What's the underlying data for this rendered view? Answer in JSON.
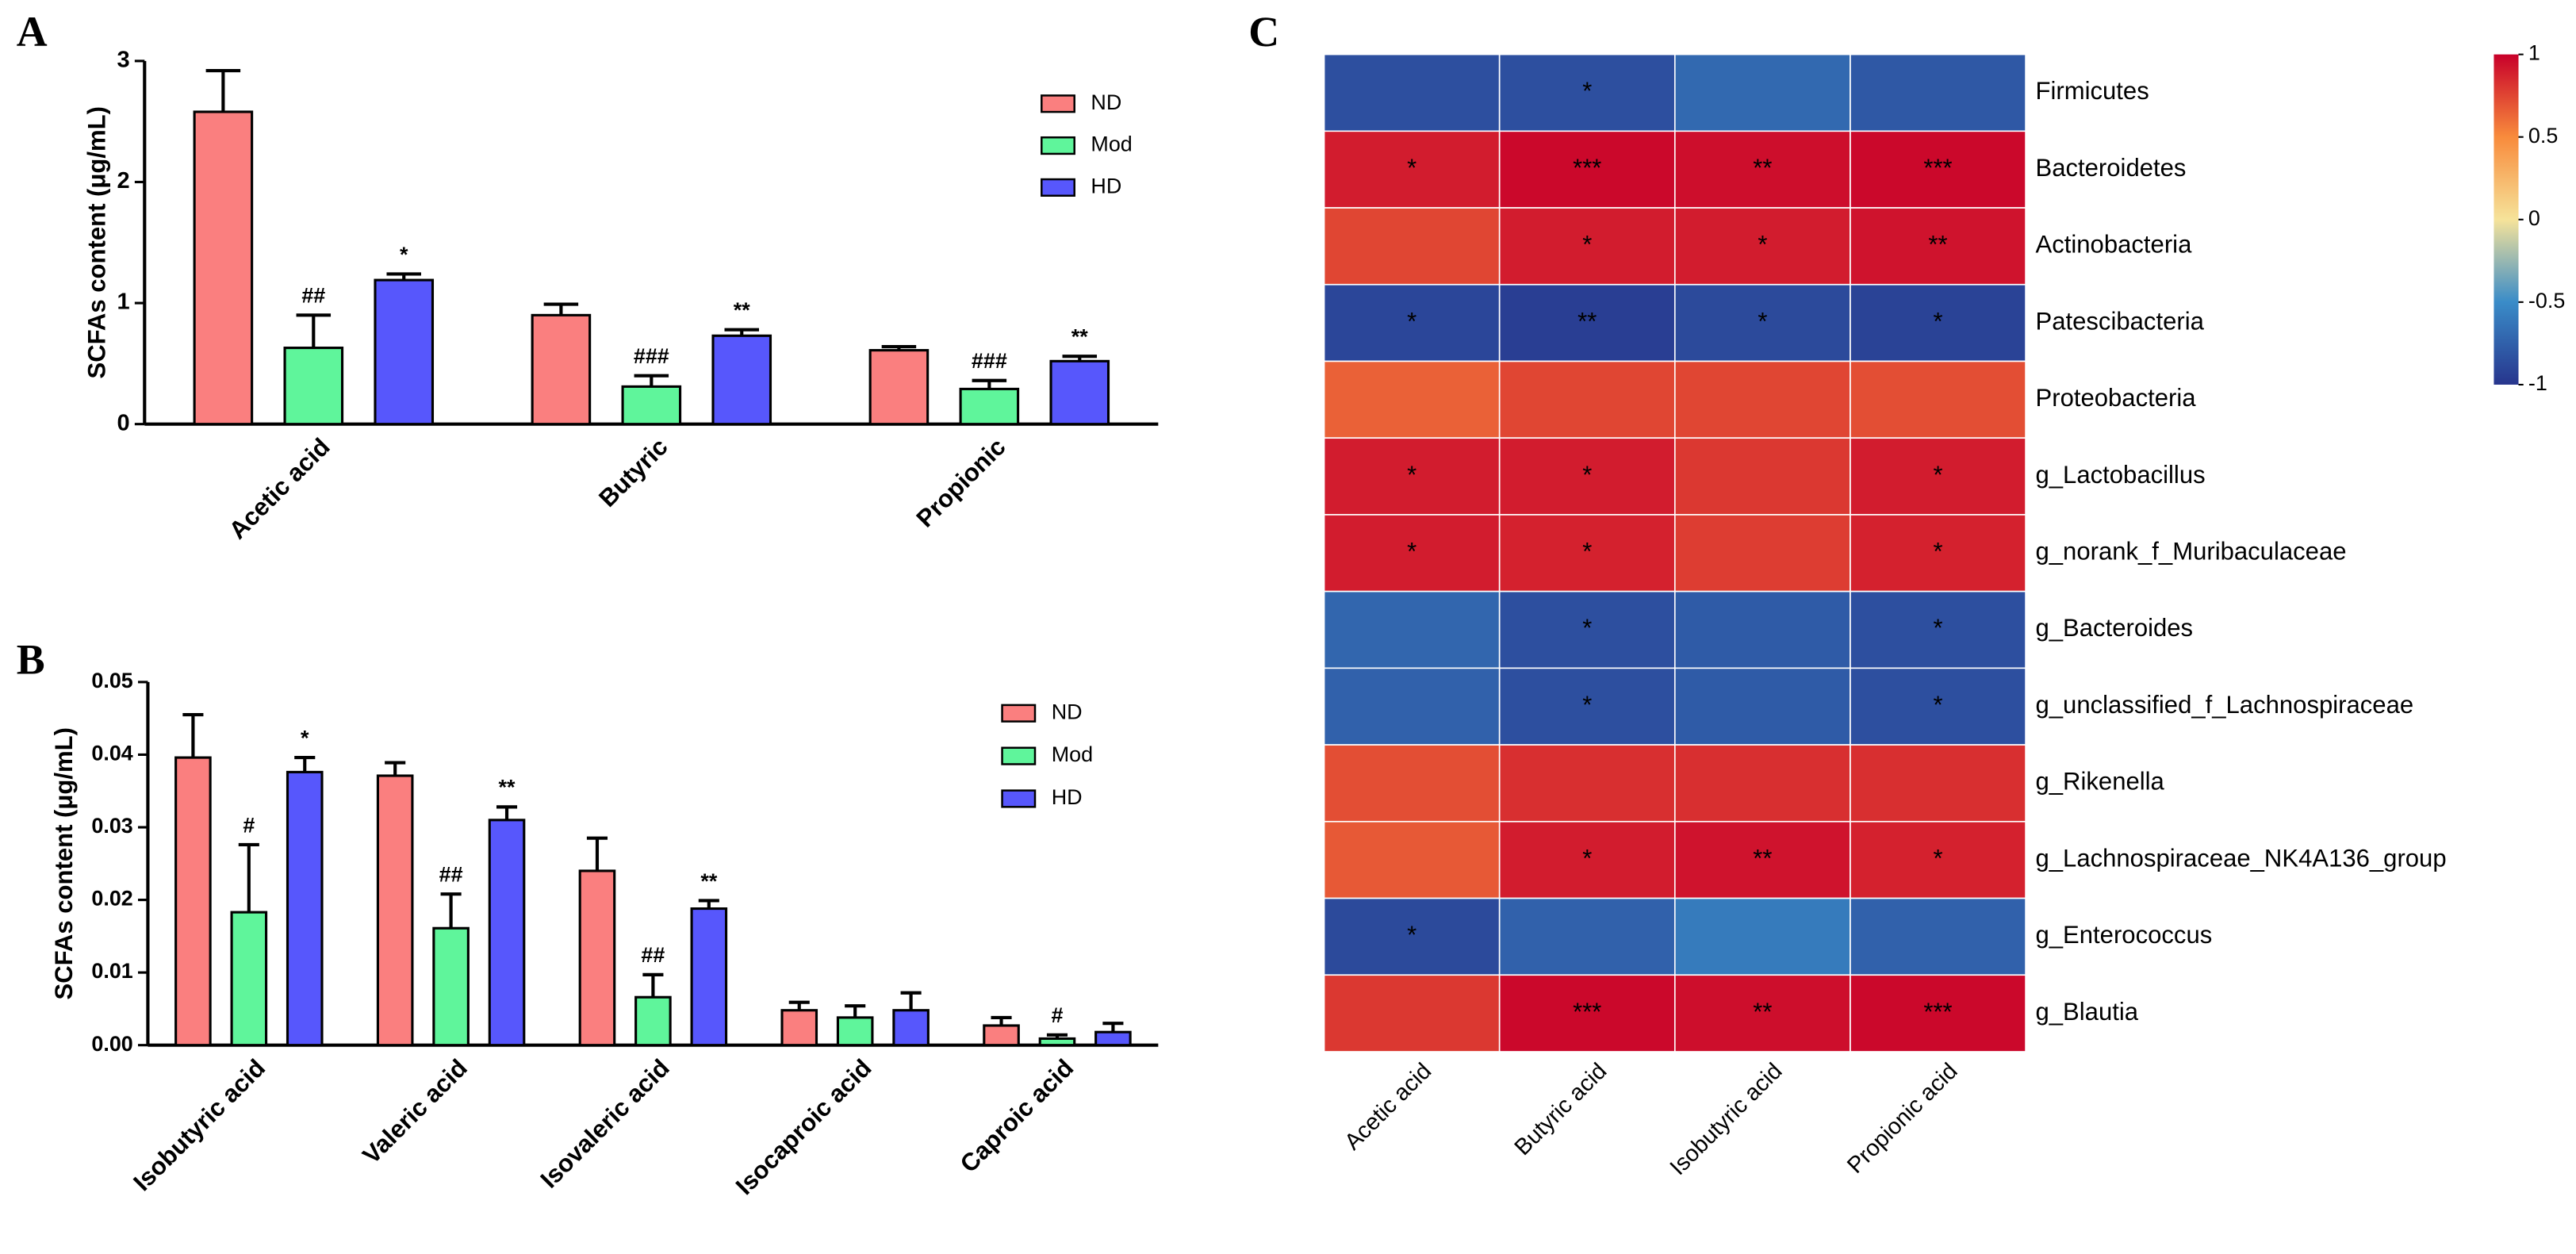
{
  "chart_data": [
    {
      "type": "bar",
      "panel_label": "A",
      "ylabel": "SCFAs content (μg/mL)",
      "categories": [
        "Acetic acid",
        "Butyric",
        "Propionic"
      ],
      "series": [
        {
          "name": "ND",
          "color": "#fa7f7f",
          "values": [
            2.58,
            0.9,
            0.61
          ],
          "errors": [
            0.34,
            0.09,
            0.03
          ],
          "significance": [
            null,
            null,
            null
          ]
        },
        {
          "name": "Mod",
          "color": "#5ff59b",
          "values": [
            0.63,
            0.31,
            0.29
          ],
          "errors": [
            0.27,
            0.09,
            0.07
          ],
          "significance": [
            "##",
            "###",
            "###"
          ]
        },
        {
          "name": "HD",
          "color": "#5757fc",
          "values": [
            1.19,
            0.73,
            0.52
          ],
          "errors": [
            0.05,
            0.05,
            0.04
          ],
          "significance": [
            "*",
            "**",
            "**"
          ]
        }
      ],
      "ylim": [
        0,
        3
      ],
      "yticks": [
        0,
        1,
        2,
        3
      ],
      "grid": false,
      "legend": "top-right"
    },
    {
      "type": "bar",
      "panel_label": "B",
      "ylabel": "SCFAs content (μg/mL)",
      "categories": [
        "Isobutyric acid",
        "Valeric acid",
        "Isovaleric acid",
        "Isocaproic acid",
        "Caproic acid"
      ],
      "series": [
        {
          "name": "ND",
          "color": "#fa7f7f",
          "values": [
            0.0396,
            0.0371,
            0.024,
            0.0048,
            0.0027
          ],
          "errors": [
            0.0059,
            0.0018,
            0.0045,
            0.0011,
            0.0011
          ],
          "significance": [
            null,
            null,
            null,
            null,
            null
          ]
        },
        {
          "name": "Mod",
          "color": "#5ff59b",
          "values": [
            0.0183,
            0.0161,
            0.0066,
            0.0038,
            0.0009
          ],
          "errors": [
            0.0093,
            0.0047,
            0.0031,
            0.0016,
            0.0005
          ],
          "significance": [
            "#",
            "##",
            "##",
            null,
            "#"
          ]
        },
        {
          "name": "HD",
          "color": "#5757fc",
          "values": [
            0.0376,
            0.031,
            0.0188,
            0.0048,
            0.0018
          ],
          "errors": [
            0.002,
            0.0018,
            0.0011,
            0.0024,
            0.0012
          ],
          "significance": [
            "*",
            "**",
            "**",
            null,
            null
          ]
        }
      ],
      "ylim": [
        0,
        0.05
      ],
      "yticks": [
        {
          "value": 0,
          "label": "0.00"
        },
        {
          "value": 0.01,
          "label": "0.01"
        },
        {
          "value": 0.02,
          "label": "0.02"
        },
        {
          "value": 0.03,
          "label": "0.03"
        },
        {
          "value": 0.04,
          "label": "0.04"
        },
        {
          "value": 0.05,
          "label": "0.05"
        }
      ],
      "grid": false,
      "legend": "top-right"
    },
    {
      "type": "heatmap",
      "panel_label": "C",
      "x": [
        "Acetic acid",
        "Butyric acid",
        "Isobutyric acid",
        "Propionic acid"
      ],
      "y": [
        "Firmicutes",
        "Bacteroidetes",
        "Actinobacteria",
        "Patescibacteria",
        "Proteobacteria",
        "g_Lactobacillus",
        "g_norank_f_Muribaculaceae",
        "g_Bacteroides",
        "g_unclassified_f_Lachnospiraceae",
        "g_Rikenella",
        "g_Lachnospiraceae_NK4A136_group",
        "g_Enterococcus",
        "g_Blautia"
      ],
      "values": [
        [
          -0.85,
          -0.85,
          -0.7,
          -0.8
        ],
        [
          0.9,
          0.97,
          0.95,
          0.97
        ],
        [
          0.75,
          0.9,
          0.9,
          0.93
        ],
        [
          -0.9,
          -0.95,
          -0.88,
          -0.92
        ],
        [
          0.65,
          0.75,
          0.75,
          0.72
        ],
        [
          0.9,
          0.9,
          0.8,
          0.9
        ],
        [
          0.9,
          0.88,
          0.78,
          0.88
        ],
        [
          -0.72,
          -0.85,
          -0.78,
          -0.85
        ],
        [
          -0.75,
          -0.85,
          -0.78,
          -0.85
        ],
        [
          0.72,
          0.83,
          0.83,
          0.83
        ],
        [
          0.68,
          0.9,
          0.93,
          0.88
        ],
        [
          -0.88,
          -0.75,
          -0.6,
          -0.75
        ],
        [
          0.8,
          0.97,
          0.95,
          0.97
        ]
      ],
      "annotations": [
        [
          null,
          "*",
          null,
          null
        ],
        [
          "*",
          "***",
          "**",
          "***"
        ],
        [
          null,
          "*",
          "*",
          "**"
        ],
        [
          "*",
          "**",
          "*",
          "*"
        ],
        [
          null,
          null,
          null,
          null
        ],
        [
          "*",
          "*",
          null,
          "*"
        ],
        [
          "*",
          "*",
          null,
          "*"
        ],
        [
          null,
          "*",
          null,
          "*"
        ],
        [
          null,
          "*",
          null,
          "*"
        ],
        [
          null,
          null,
          null,
          null
        ],
        [
          null,
          "*",
          "**",
          "*"
        ],
        [
          "*",
          null,
          null,
          null
        ],
        [
          null,
          "***",
          "**",
          "***"
        ]
      ],
      "zlim": [
        -1,
        1
      ],
      "zticks": [
        1,
        0.5,
        0,
        -0.5,
        -1
      ],
      "colors": [
        "#27358d",
        "#3a8cc8",
        "#f6e39a",
        "#f88b3c",
        "#c8002a"
      ]
    }
  ]
}
